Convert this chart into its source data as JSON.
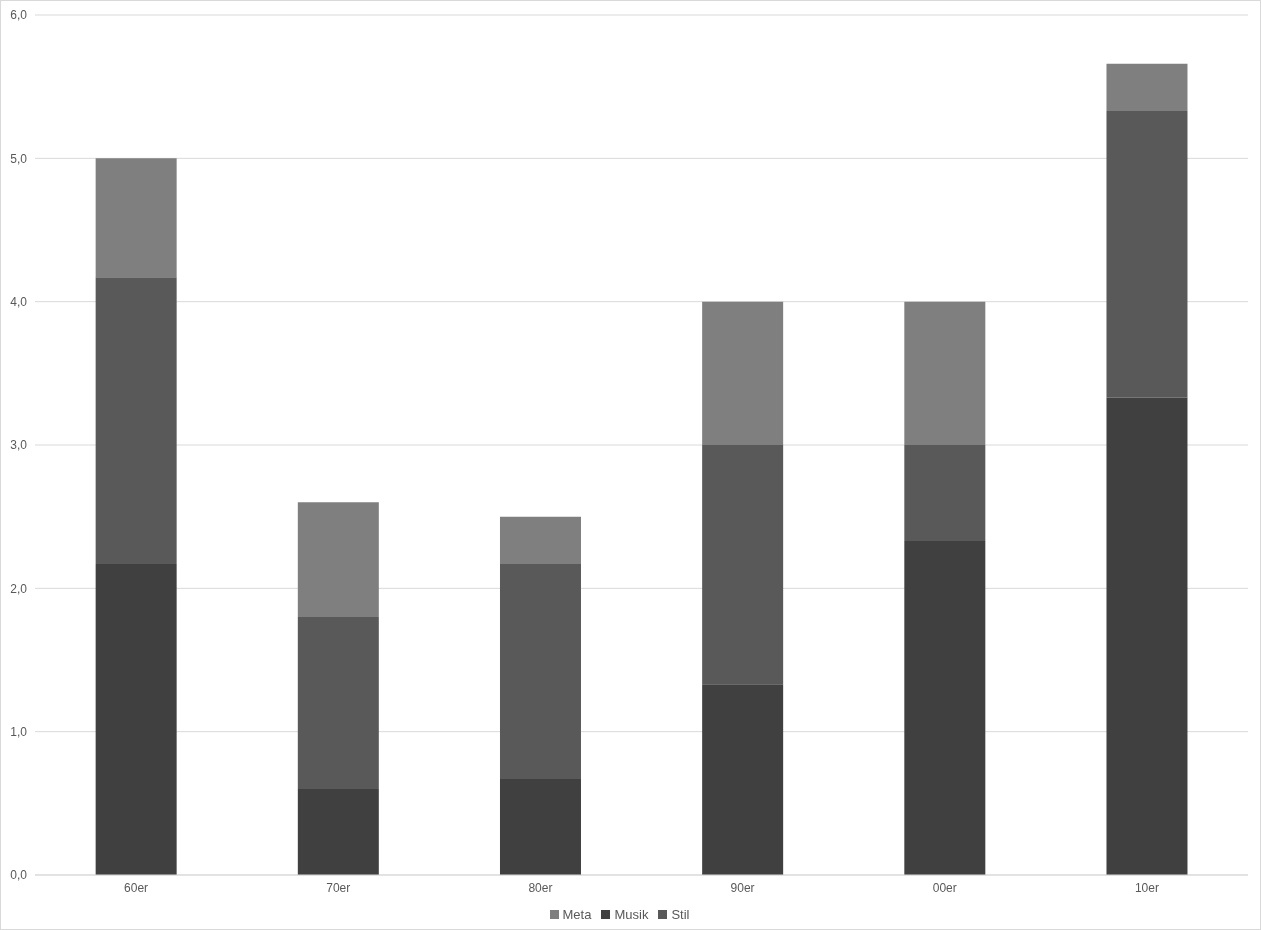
{
  "chart_data": {
    "type": "bar",
    "stacked": true,
    "categories": [
      "60er",
      "70er",
      "80er",
      "90er",
      "00er",
      "10er"
    ],
    "series": [
      {
        "name": "Musik",
        "color": "#404040",
        "values": [
          2.17,
          0.6,
          0.67,
          1.33,
          2.33,
          3.33
        ]
      },
      {
        "name": "Stil",
        "color": "#595959",
        "values": [
          2.0,
          1.2,
          1.5,
          1.67,
          0.67,
          2.0
        ]
      },
      {
        "name": "Meta",
        "color": "#7f7f7f",
        "values": [
          0.83,
          0.8,
          0.33,
          1.0,
          1.0,
          0.33
        ]
      }
    ],
    "ylim": [
      0,
      6
    ],
    "yticks": [
      {
        "value": 0,
        "label": "0,0"
      },
      {
        "value": 1,
        "label": "1,0"
      },
      {
        "value": 2,
        "label": "2,0"
      },
      {
        "value": 3,
        "label": "3,0"
      },
      {
        "value": 4,
        "label": "4,0"
      },
      {
        "value": 5,
        "label": "5,0"
      },
      {
        "value": 6,
        "label": "6,0"
      }
    ],
    "grid": "y",
    "legend": "bottom"
  }
}
